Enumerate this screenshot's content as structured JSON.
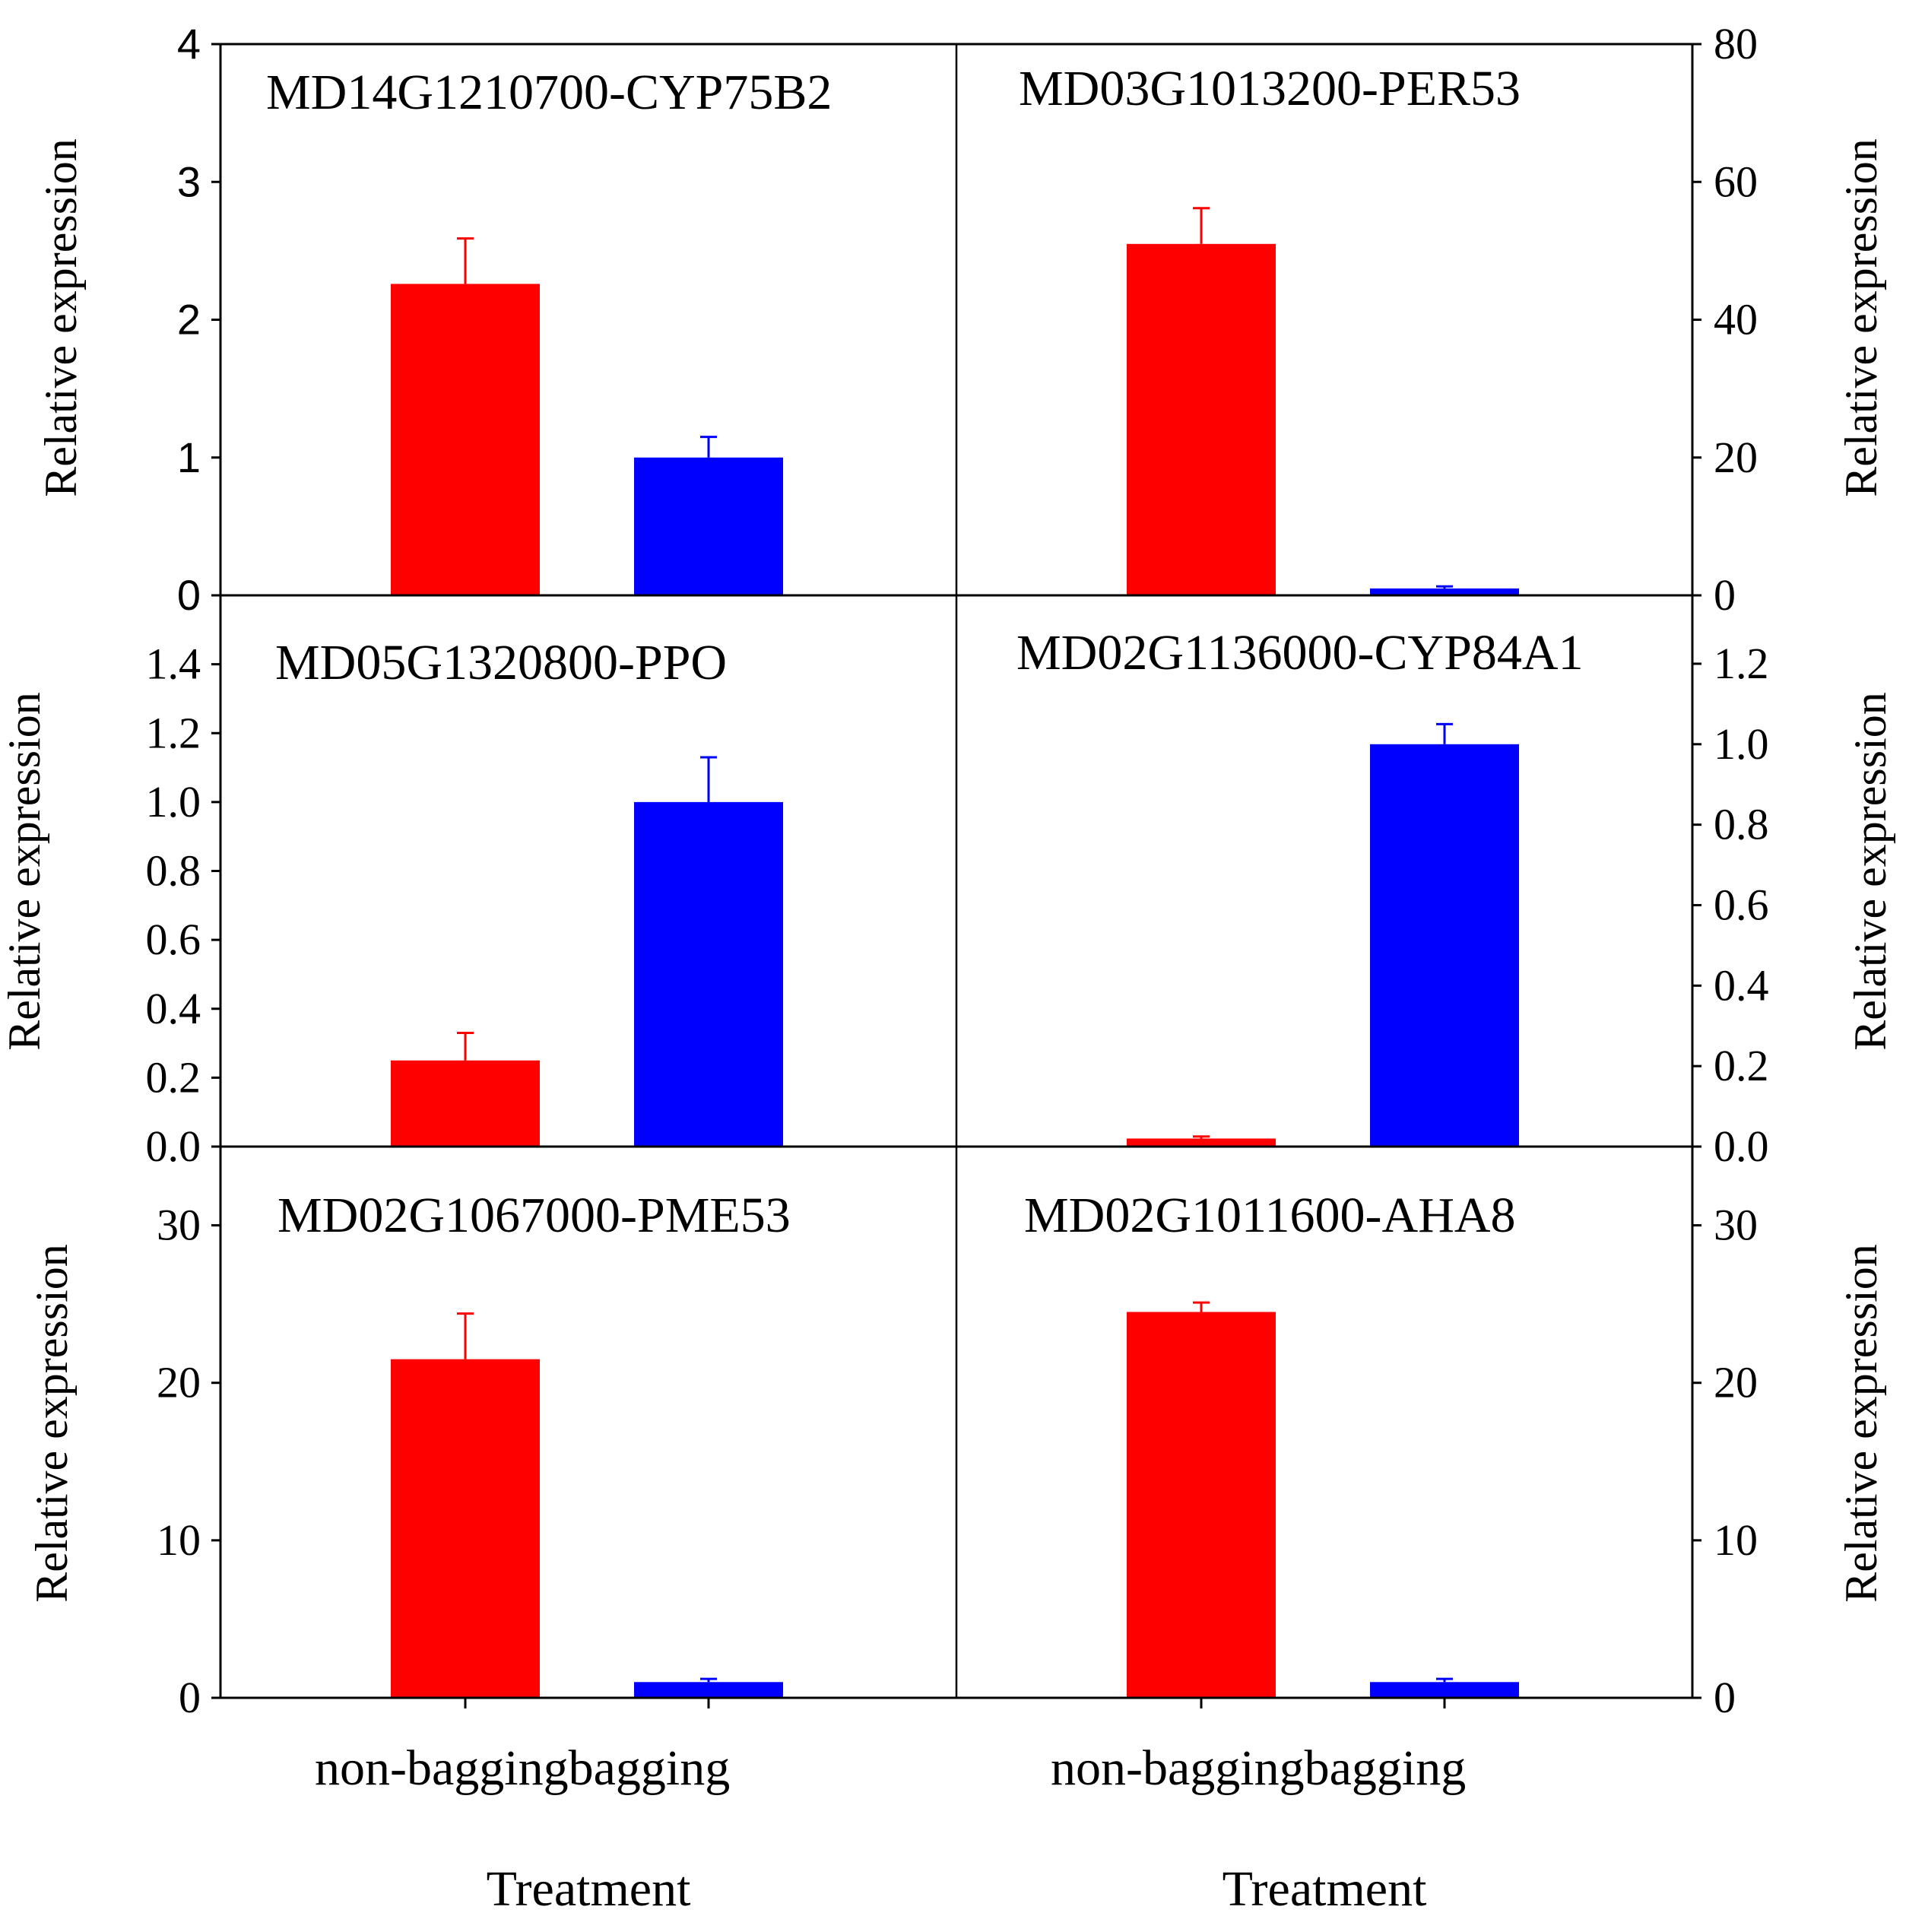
{
  "chart_data": {
    "type": "bar",
    "layout": "3x2 grid of panels sharing categories",
    "categories": [
      "non-bagging",
      "bagging"
    ],
    "category_colors": [
      "#ff0000",
      "#0000ff"
    ],
    "xlabel": "Treatment",
    "ylabel": "Relative expression",
    "panels": [
      {
        "id": "p1",
        "title": "MD14G1210700-CYP75B2",
        "ylabel": "Relative expression",
        "ylim": [
          0,
          4
        ],
        "yticks": [
          0,
          1,
          2,
          3,
          4
        ],
        "tick_labels": [
          "0",
          "1",
          "2",
          "3",
          "4"
        ],
        "values": [
          2.26,
          1.0
        ],
        "errors": [
          0.33,
          0.15
        ]
      },
      {
        "id": "p2",
        "title": "MD03G1013200-PER53",
        "ylabel": "Relative expression",
        "ylim": [
          0,
          80
        ],
        "yticks": [
          0,
          20,
          40,
          60,
          80
        ],
        "tick_labels": [
          "0",
          "20",
          "40",
          "60",
          "80"
        ],
        "values": [
          51.0,
          1.0
        ],
        "errors": [
          5.2,
          0.3
        ]
      },
      {
        "id": "p3",
        "title": "MD05G1320800-PPO",
        "ylabel": "Relative expression",
        "ylim": [
          0,
          1.6
        ],
        "yticks": [
          0.0,
          0.2,
          0.4,
          0.6,
          0.8,
          1.0,
          1.2,
          1.4
        ],
        "tick_labels": [
          "0.0",
          "0.2",
          "0.4",
          "0.6",
          "0.8",
          "1.0",
          "1.2",
          "1.4"
        ],
        "values": [
          0.25,
          1.0
        ],
        "errors": [
          0.08,
          0.13
        ]
      },
      {
        "id": "p4",
        "title": "MD02G1136000-CYP84A1",
        "ylabel": "Relative expression",
        "ylim": [
          0,
          1.37
        ],
        "yticks": [
          0.0,
          0.2,
          0.4,
          0.6,
          0.8,
          1.0,
          1.2
        ],
        "tick_labels": [
          "0.0",
          "0.2",
          "0.4",
          "0.6",
          "0.8",
          "1.0",
          "1.2"
        ],
        "values": [
          0.02,
          1.0
        ],
        "errors": [
          0.005,
          0.05
        ]
      },
      {
        "id": "p5",
        "title": "MD02G1067000-PME53",
        "ylabel": "Relative expression",
        "ylim": [
          0,
          35
        ],
        "yticks": [
          0,
          10,
          20,
          30
        ],
        "tick_labels": [
          "0",
          "10",
          "20",
          "30"
        ],
        "values": [
          21.5,
          1.0
        ],
        "errors": [
          2.9,
          0.2
        ]
      },
      {
        "id": "p6",
        "title": "MD02G1011600-AHA8",
        "ylabel": "Relative expression",
        "ylim": [
          0,
          35
        ],
        "yticks": [
          0,
          10,
          20,
          30
        ],
        "tick_labels": [
          "0",
          "10",
          "20",
          "30"
        ],
        "values": [
          24.5,
          1.0
        ],
        "errors": [
          0.6,
          0.2
        ]
      }
    ]
  }
}
